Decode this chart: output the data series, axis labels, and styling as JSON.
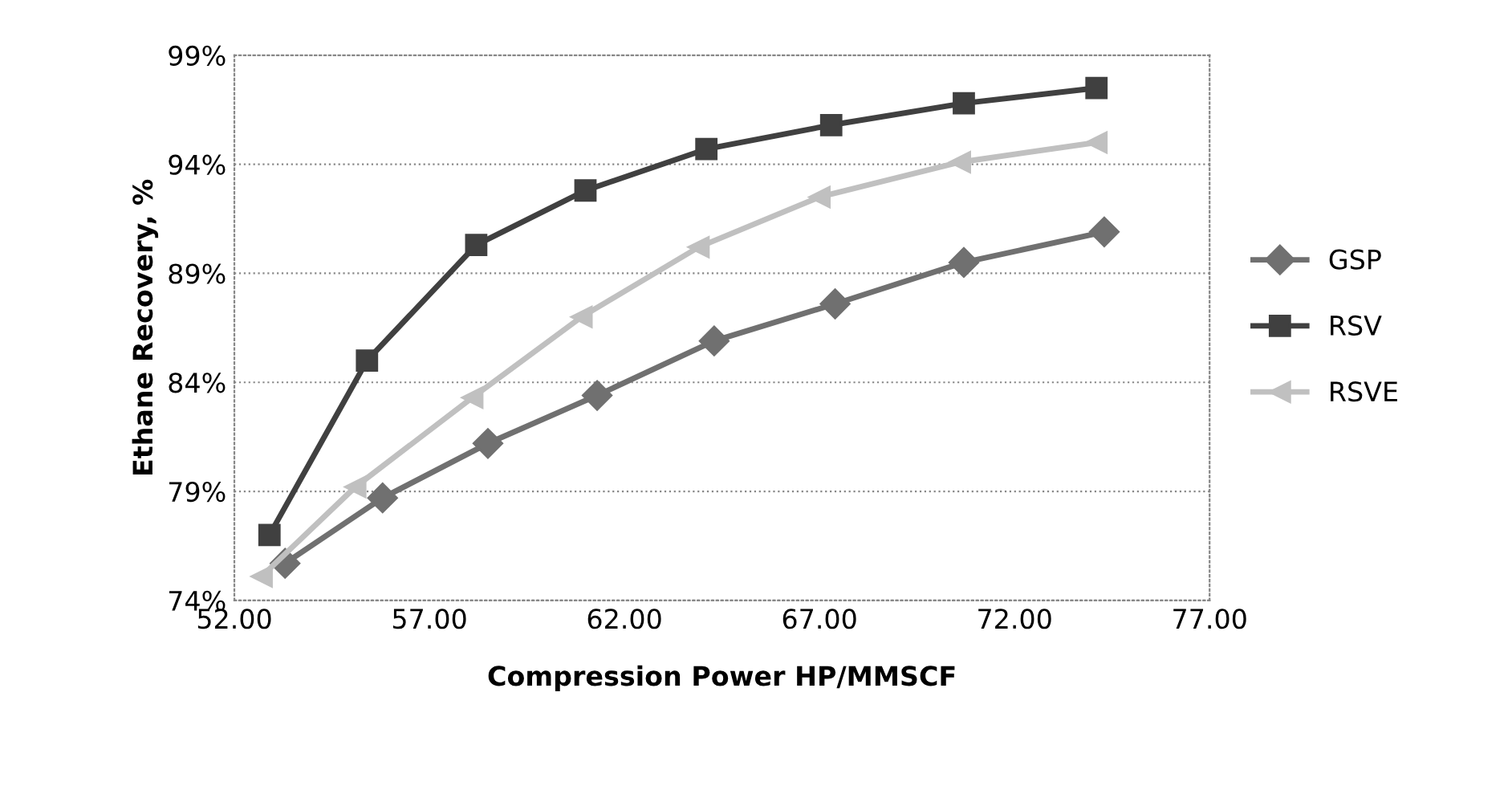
{
  "chart_data": {
    "type": "line",
    "xlabel": "Compression Power HP/MMSCF",
    "ylabel": "Ethane Recovery, %",
    "xlim": [
      52,
      77
    ],
    "xticks": [
      {
        "value": 52,
        "label": "52.00"
      },
      {
        "value": 57,
        "label": "57.00"
      },
      {
        "value": 62,
        "label": "62.00"
      },
      {
        "value": 67,
        "label": "67.00"
      },
      {
        "value": 72,
        "label": "72.00"
      },
      {
        "value": 77,
        "label": "77.00"
      }
    ],
    "ylim": [
      74,
      99
    ],
    "yticks": [
      {
        "value": 74,
        "label": "74%"
      },
      {
        "value": 79,
        "label": "79%"
      },
      {
        "value": 84,
        "label": "84%"
      },
      {
        "value": 89,
        "label": "89%"
      },
      {
        "value": 94,
        "label": "94%"
      },
      {
        "value": 99,
        "label": "99%"
      }
    ],
    "grid": "y",
    "legend": "right",
    "line_style": "solid",
    "series": [
      {
        "name": "GSP",
        "color": "#707070",
        "marker": "diamond",
        "x": [
          53.3,
          55.8,
          58.5,
          61.3,
          64.3,
          67.4,
          70.7,
          74.3
        ],
        "values": [
          75.7,
          78.7,
          81.2,
          83.4,
          85.9,
          87.6,
          89.5,
          90.9
        ]
      },
      {
        "name": "RSV",
        "color": "#404040",
        "marker": "square",
        "x": [
          52.9,
          55.4,
          58.2,
          61.0,
          64.1,
          67.3,
          70.7,
          74.1
        ],
        "values": [
          77.0,
          85.0,
          90.3,
          92.8,
          94.7,
          95.8,
          96.8,
          97.5
        ]
      },
      {
        "name": "RSVE",
        "color": "#c0c0c0",
        "marker": "triangle",
        "x": [
          52.7,
          55.1,
          58.1,
          60.9,
          63.9,
          67.0,
          70.6,
          74.1
        ],
        "values": [
          75.1,
          79.2,
          83.3,
          87.0,
          90.2,
          92.5,
          94.1,
          95.0
        ]
      }
    ]
  }
}
